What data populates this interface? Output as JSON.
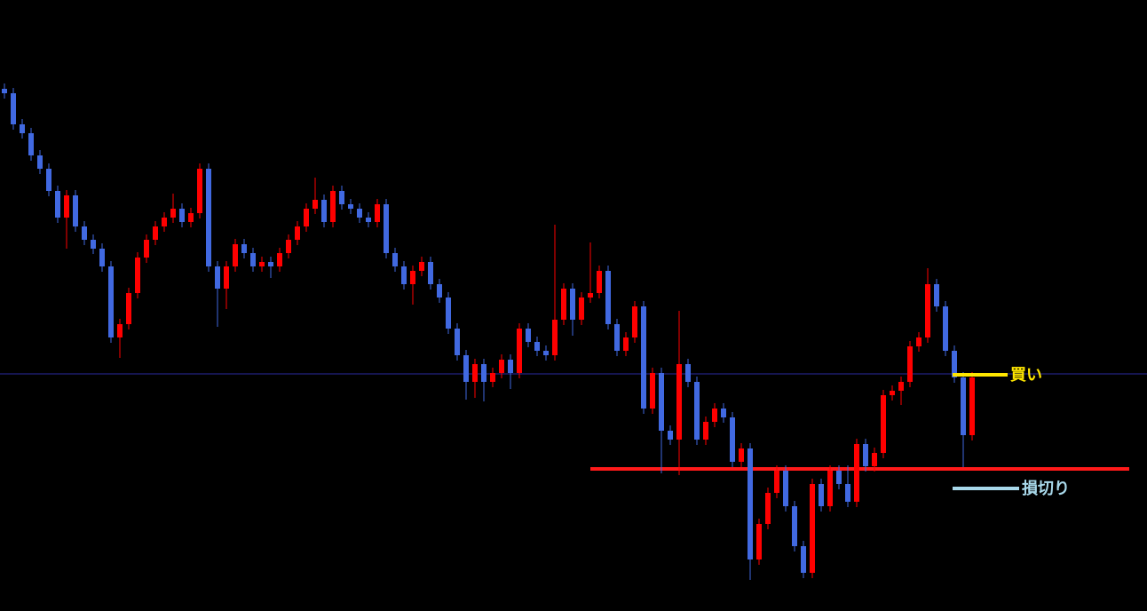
{
  "chart_data": {
    "type": "candlestick",
    "up_color": "#ff0000",
    "down_color": "#4169e1",
    "ylim": [
      0,
      688
    ],
    "open": [
      588,
      583,
      548,
      538,
      513,
      498,
      473,
      443,
      468,
      433,
      418,
      408,
      388,
      308,
      323,
      358,
      398,
      418,
      433,
      443,
      453,
      438,
      448,
      498,
      388,
      363,
      388,
      413,
      403,
      388,
      393,
      388,
      403,
      418,
      433,
      453,
      463,
      438,
      473,
      458,
      453,
      443,
      438,
      458,
      403,
      388,
      368,
      383,
      393,
      368,
      353,
      318,
      288,
      258,
      278,
      258,
      268,
      283,
      268,
      318,
      303,
      293,
      288,
      328,
      363,
      328,
      353,
      358,
      383,
      323,
      293,
      308,
      343,
      228,
      268,
      203,
      193,
      278,
      258,
      193,
      213,
      228,
      218,
      168,
      183,
      58,
      98,
      133,
      158,
      118,
      73,
      43,
      143,
      118,
      158,
      143,
      123,
      188,
      163,
      178,
      243,
      248,
      258,
      298,
      308,
      368,
      343,
      293,
      263,
      198
    ],
    "high": [
      594,
      589,
      554,
      544,
      519,
      504,
      479,
      474,
      474,
      439,
      424,
      414,
      394,
      329,
      364,
      404,
      424,
      439,
      449,
      470,
      459,
      454,
      504,
      504,
      394,
      394,
      419,
      419,
      409,
      399,
      399,
      409,
      424,
      439,
      459,
      488,
      469,
      479,
      479,
      464,
      459,
      449,
      464,
      464,
      409,
      394,
      389,
      399,
      399,
      374,
      359,
      324,
      294,
      284,
      284,
      274,
      289,
      289,
      324,
      324,
      309,
      299,
      435,
      369,
      369,
      359,
      415,
      389,
      389,
      329,
      314,
      349,
      349,
      274,
      274,
      209,
      338,
      284,
      264,
      219,
      234,
      234,
      224,
      189,
      189,
      104,
      139,
      164,
      164,
      124,
      79,
      149,
      149,
      164,
      164,
      164,
      194,
      194,
      184,
      249,
      254,
      264,
      304,
      314,
      386,
      374,
      349,
      299,
      269,
      269
    ],
    "low": [
      577,
      542,
      532,
      507,
      492,
      467,
      437,
      408,
      427,
      412,
      402,
      382,
      302,
      285,
      317,
      352,
      392,
      412,
      427,
      437,
      432,
      432,
      442,
      382,
      320,
      340,
      382,
      397,
      382,
      382,
      375,
      382,
      397,
      412,
      427,
      447,
      432,
      432,
      452,
      447,
      437,
      432,
      432,
      397,
      382,
      362,
      345,
      377,
      362,
      347,
      312,
      282,
      238,
      240,
      236,
      252,
      262,
      250,
      262,
      297,
      287,
      282,
      282,
      322,
      310,
      322,
      347,
      352,
      317,
      287,
      287,
      302,
      222,
      222,
      155,
      187,
      153,
      252,
      187,
      187,
      207,
      212,
      162,
      162,
      35,
      52,
      92,
      127,
      112,
      67,
      37,
      37,
      112,
      112,
      137,
      117,
      117,
      157,
      157,
      172,
      237,
      232,
      252,
      292,
      302,
      337,
      287,
      257,
      162,
      192
    ],
    "close": [
      583,
      548,
      538,
      513,
      498,
      473,
      443,
      468,
      433,
      418,
      408,
      388,
      308,
      323,
      358,
      398,
      418,
      433,
      443,
      453,
      438,
      448,
      498,
      388,
      363,
      388,
      413,
      403,
      388,
      393,
      388,
      403,
      418,
      433,
      453,
      463,
      438,
      473,
      458,
      453,
      443,
      438,
      458,
      403,
      388,
      368,
      383,
      393,
      368,
      353,
      318,
      288,
      258,
      278,
      258,
      268,
      283,
      268,
      318,
      303,
      293,
      288,
      328,
      363,
      328,
      353,
      358,
      383,
      323,
      293,
      308,
      343,
      228,
      268,
      203,
      193,
      278,
      258,
      193,
      213,
      228,
      218,
      168,
      183,
      58,
      98,
      133,
      158,
      118,
      73,
      43,
      143,
      118,
      158,
      143,
      123,
      188,
      163,
      178,
      243,
      248,
      258,
      298,
      308,
      368,
      343,
      293,
      263,
      198,
      263
    ],
    "levels": [
      {
        "value": 267,
        "color": "#2a2aa0"
      },
      {
        "value": 160,
        "color": "#ff1a1a"
      }
    ],
    "annotations": [
      {
        "label": "買い",
        "value": 266,
        "color": "#ffe600"
      },
      {
        "label": "損切り",
        "value": 138,
        "color": "#a8d8ea"
      }
    ]
  }
}
